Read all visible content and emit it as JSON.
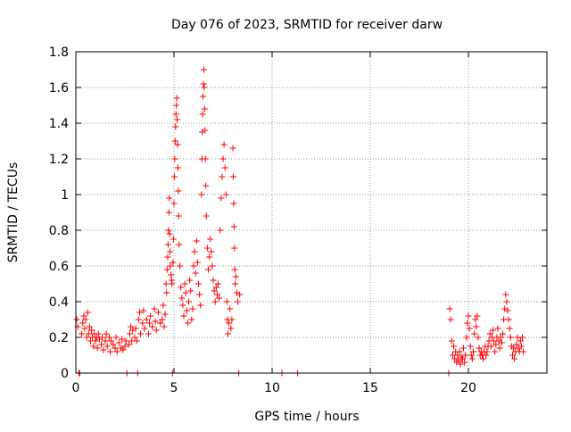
{
  "chart_data": {
    "type": "scatter",
    "title": "Day 076 of 2023, SRMTID for receiver darw",
    "xlabel": "GPS time / hours",
    "ylabel": "SRMTID / TECUs",
    "xlim": [
      0,
      24
    ],
    "ylim": [
      0,
      1.8
    ],
    "x_ticks": [
      0,
      5,
      10,
      15,
      20
    ],
    "x_tick_labels": [
      "0",
      "5",
      "10",
      "15",
      "20"
    ],
    "y_ticks": [
      0,
      0.2,
      0.4,
      0.6,
      0.8,
      1.0,
      1.2,
      1.4,
      1.6,
      1.8
    ],
    "y_tick_labels": [
      "0",
      "0.2",
      "0.4",
      "0.6",
      "0.8",
      "1",
      "1.2",
      "1.4",
      "1.6",
      "1.8"
    ],
    "grid": true,
    "marker": "+",
    "series": [
      {
        "name": "SRMTID darw",
        "color": "#ff0000",
        "points": [
          [
            0.05,
            0.3
          ],
          [
            0.1,
            0.26
          ],
          [
            0.15,
            0.0
          ],
          [
            0.2,
            0.0
          ],
          [
            0.3,
            0.22
          ],
          [
            0.35,
            0.28
          ],
          [
            0.4,
            0.32
          ],
          [
            0.45,
            0.25
          ],
          [
            0.5,
            0.3
          ],
          [
            0.55,
            0.2
          ],
          [
            0.6,
            0.34
          ],
          [
            0.65,
            0.22
          ],
          [
            0.7,
            0.26
          ],
          [
            0.75,
            0.18
          ],
          [
            0.8,
            0.24
          ],
          [
            0.85,
            0.2
          ],
          [
            0.9,
            0.15
          ],
          [
            0.95,
            0.22
          ],
          [
            1.0,
            0.18
          ],
          [
            1.05,
            0.2
          ],
          [
            1.1,
            0.14
          ],
          [
            1.15,
            0.22
          ],
          [
            1.2,
            0.19
          ],
          [
            1.3,
            0.16
          ],
          [
            1.35,
            0.2
          ],
          [
            1.4,
            0.13
          ],
          [
            1.5,
            0.18
          ],
          [
            1.55,
            0.22
          ],
          [
            1.6,
            0.15
          ],
          [
            1.7,
            0.2
          ],
          [
            1.75,
            0.12
          ],
          [
            1.8,
            0.18
          ],
          [
            1.9,
            0.16
          ],
          [
            2.0,
            0.14
          ],
          [
            2.05,
            0.2
          ],
          [
            2.1,
            0.12
          ],
          [
            2.2,
            0.17
          ],
          [
            2.3,
            0.14
          ],
          [
            2.35,
            0.19
          ],
          [
            2.4,
            0.13
          ],
          [
            2.5,
            0.15
          ],
          [
            2.55,
            0.18
          ],
          [
            2.6,
            0.0
          ],
          [
            2.7,
            0.16
          ],
          [
            2.75,
            0.22
          ],
          [
            2.8,
            0.26
          ],
          [
            2.85,
            0.18
          ],
          [
            2.9,
            0.24
          ],
          [
            3.0,
            0.2
          ],
          [
            3.05,
            0.25
          ],
          [
            3.1,
            0.18
          ],
          [
            3.15,
            0.0
          ],
          [
            3.2,
            0.3
          ],
          [
            3.25,
            0.34
          ],
          [
            3.3,
            0.22
          ],
          [
            3.4,
            0.28
          ],
          [
            3.45,
            0.35
          ],
          [
            3.5,
            0.25
          ],
          [
            3.6,
            0.3
          ],
          [
            3.7,
            0.22
          ],
          [
            3.75,
            0.28
          ],
          [
            3.8,
            0.32
          ],
          [
            3.9,
            0.26
          ],
          [
            4.0,
            0.36
          ],
          [
            4.05,
            0.29
          ],
          [
            4.1,
            0.24
          ],
          [
            4.2,
            0.34
          ],
          [
            4.3,
            0.28
          ],
          [
            4.4,
            0.3
          ],
          [
            4.45,
            0.38
          ],
          [
            4.5,
            0.26
          ],
          [
            4.55,
            0.33
          ],
          [
            4.6,
            0.5
          ],
          [
            4.62,
            0.45
          ],
          [
            4.65,
            0.58
          ],
          [
            4.68,
            0.65
          ],
          [
            4.7,
            0.72
          ],
          [
            4.72,
            0.8
          ],
          [
            4.74,
            0.9
          ],
          [
            4.76,
            0.98
          ],
          [
            4.78,
            0.78
          ],
          [
            4.8,
            0.68
          ],
          [
            4.82,
            0.6
          ],
          [
            4.85,
            0.55
          ],
          [
            4.88,
            0.52
          ],
          [
            4.9,
            0.5
          ],
          [
            4.92,
            0.0
          ],
          [
            4.95,
            0.62
          ],
          [
            4.97,
            0.75
          ],
          [
            5.0,
            0.95
          ],
          [
            5.02,
            1.1
          ],
          [
            5.04,
            1.2
          ],
          [
            5.06,
            1.3
          ],
          [
            5.08,
            1.38
          ],
          [
            5.1,
            1.45
          ],
          [
            5.12,
            1.5
          ],
          [
            5.14,
            1.54
          ],
          [
            5.16,
            1.42
          ],
          [
            5.18,
            1.28
          ],
          [
            5.2,
            1.15
          ],
          [
            5.22,
            1.02
          ],
          [
            5.24,
            0.88
          ],
          [
            5.26,
            0.72
          ],
          [
            5.3,
            0.6
          ],
          [
            5.35,
            0.48
          ],
          [
            5.4,
            0.42
          ],
          [
            5.45,
            0.38
          ],
          [
            5.5,
            0.32
          ],
          [
            5.55,
            0.5
          ],
          [
            5.6,
            0.45
          ],
          [
            5.65,
            0.35
          ],
          [
            5.7,
            0.28
          ],
          [
            5.75,
            0.4
          ],
          [
            5.8,
            0.52
          ],
          [
            5.85,
            0.46
          ],
          [
            5.9,
            0.3
          ],
          [
            5.95,
            0.36
          ],
          [
            6.0,
            0.6
          ],
          [
            6.05,
            0.68
          ],
          [
            6.1,
            0.56
          ],
          [
            6.15,
            0.74
          ],
          [
            6.2,
            0.62
          ],
          [
            6.25,
            0.5
          ],
          [
            6.3,
            0.44
          ],
          [
            6.35,
            0.38
          ],
          [
            6.4,
            1.0
          ],
          [
            6.42,
            1.2
          ],
          [
            6.44,
            1.35
          ],
          [
            6.46,
            1.45
          ],
          [
            6.48,
            1.55
          ],
          [
            6.5,
            1.62
          ],
          [
            6.52,
            1.7
          ],
          [
            6.54,
            1.6
          ],
          [
            6.56,
            1.48
          ],
          [
            6.58,
            1.36
          ],
          [
            6.6,
            1.2
          ],
          [
            6.62,
            1.05
          ],
          [
            6.65,
            0.88
          ],
          [
            6.7,
            0.7
          ],
          [
            6.75,
            0.58
          ],
          [
            6.8,
            0.65
          ],
          [
            6.85,
            0.75
          ],
          [
            6.9,
            0.68
          ],
          [
            6.95,
            0.6
          ],
          [
            7.0,
            0.52
          ],
          [
            7.05,
            0.46
          ],
          [
            7.1,
            0.4
          ],
          [
            7.15,
            0.48
          ],
          [
            7.2,
            0.44
          ],
          [
            7.25,
            0.5
          ],
          [
            7.3,
            0.42
          ],
          [
            7.35,
            0.8
          ],
          [
            7.4,
            0.98
          ],
          [
            7.45,
            1.1
          ],
          [
            7.5,
            1.2
          ],
          [
            7.55,
            1.28
          ],
          [
            7.6,
            1.15
          ],
          [
            7.65,
            1.0
          ],
          [
            7.7,
            0.4
          ],
          [
            7.72,
            0.3
          ],
          [
            7.75,
            0.22
          ],
          [
            7.8,
            0.28
          ],
          [
            7.85,
            0.36
          ],
          [
            7.9,
            0.25
          ],
          [
            7.95,
            0.3
          ],
          [
            8.0,
            1.26
          ],
          [
            8.02,
            1.1
          ],
          [
            8.04,
            0.95
          ],
          [
            8.06,
            0.82
          ],
          [
            8.08,
            0.7
          ],
          [
            8.1,
            0.58
          ],
          [
            8.12,
            0.5
          ],
          [
            8.15,
            0.54
          ],
          [
            8.2,
            0.45
          ],
          [
            8.25,
            0.4
          ],
          [
            8.3,
            0.0
          ],
          [
            8.35,
            0.44
          ],
          [
            10.5,
            0.0
          ],
          [
            11.3,
            0.0
          ],
          [
            19.0,
            0.0
          ],
          [
            19.05,
            0.36
          ],
          [
            19.1,
            0.3
          ],
          [
            19.15,
            0.18
          ],
          [
            19.2,
            0.1
          ],
          [
            19.25,
            0.15
          ],
          [
            19.3,
            0.08
          ],
          [
            19.35,
            0.12
          ],
          [
            19.4,
            0.06
          ],
          [
            19.45,
            0.1
          ],
          [
            19.5,
            0.07
          ],
          [
            19.55,
            0.12
          ],
          [
            19.6,
            0.05
          ],
          [
            19.65,
            0.09
          ],
          [
            19.7,
            0.08
          ],
          [
            19.75,
            0.14
          ],
          [
            19.8,
            0.06
          ],
          [
            19.85,
            0.1
          ],
          [
            19.9,
            0.2
          ],
          [
            19.95,
            0.28
          ],
          [
            20.0,
            0.32
          ],
          [
            20.05,
            0.25
          ],
          [
            20.1,
            0.15
          ],
          [
            20.15,
            0.1
          ],
          [
            20.2,
            0.08
          ],
          [
            20.25,
            0.12
          ],
          [
            20.3,
            0.22
          ],
          [
            20.35,
            0.3
          ],
          [
            20.4,
            0.26
          ],
          [
            20.45,
            0.32
          ],
          [
            20.5,
            0.2
          ],
          [
            20.55,
            0.14
          ],
          [
            20.6,
            0.1
          ],
          [
            20.65,
            0.12
          ],
          [
            20.7,
            0.1
          ],
          [
            20.75,
            0.08
          ],
          [
            20.8,
            0.12
          ],
          [
            20.85,
            0.15
          ],
          [
            20.9,
            0.1
          ],
          [
            20.95,
            0.12
          ],
          [
            21.0,
            0.15
          ],
          [
            21.05,
            0.18
          ],
          [
            21.1,
            0.22
          ],
          [
            21.15,
            0.15
          ],
          [
            21.2,
            0.2
          ],
          [
            21.25,
            0.24
          ],
          [
            21.3,
            0.18
          ],
          [
            21.35,
            0.12
          ],
          [
            21.4,
            0.16
          ],
          [
            21.45,
            0.2
          ],
          [
            21.5,
            0.25
          ],
          [
            21.55,
            0.18
          ],
          [
            21.6,
            0.14
          ],
          [
            21.65,
            0.2
          ],
          [
            21.7,
            0.17
          ],
          [
            21.75,
            0.22
          ],
          [
            21.8,
            0.3
          ],
          [
            21.85,
            0.36
          ],
          [
            21.9,
            0.44
          ],
          [
            21.95,
            0.4
          ],
          [
            22.0,
            0.35
          ],
          [
            22.05,
            0.3
          ],
          [
            22.1,
            0.25
          ],
          [
            22.15,
            0.2
          ],
          [
            22.2,
            0.15
          ],
          [
            22.25,
            0.1
          ],
          [
            22.3,
            0.14
          ],
          [
            22.35,
            0.08
          ],
          [
            22.4,
            0.12
          ],
          [
            22.45,
            0.16
          ],
          [
            22.5,
            0.2
          ],
          [
            22.55,
            0.14
          ],
          [
            22.6,
            0.12
          ],
          [
            22.65,
            0.18
          ],
          [
            22.7,
            0.15
          ],
          [
            22.75,
            0.2
          ],
          [
            22.8,
            0.12
          ]
        ]
      }
    ]
  }
}
